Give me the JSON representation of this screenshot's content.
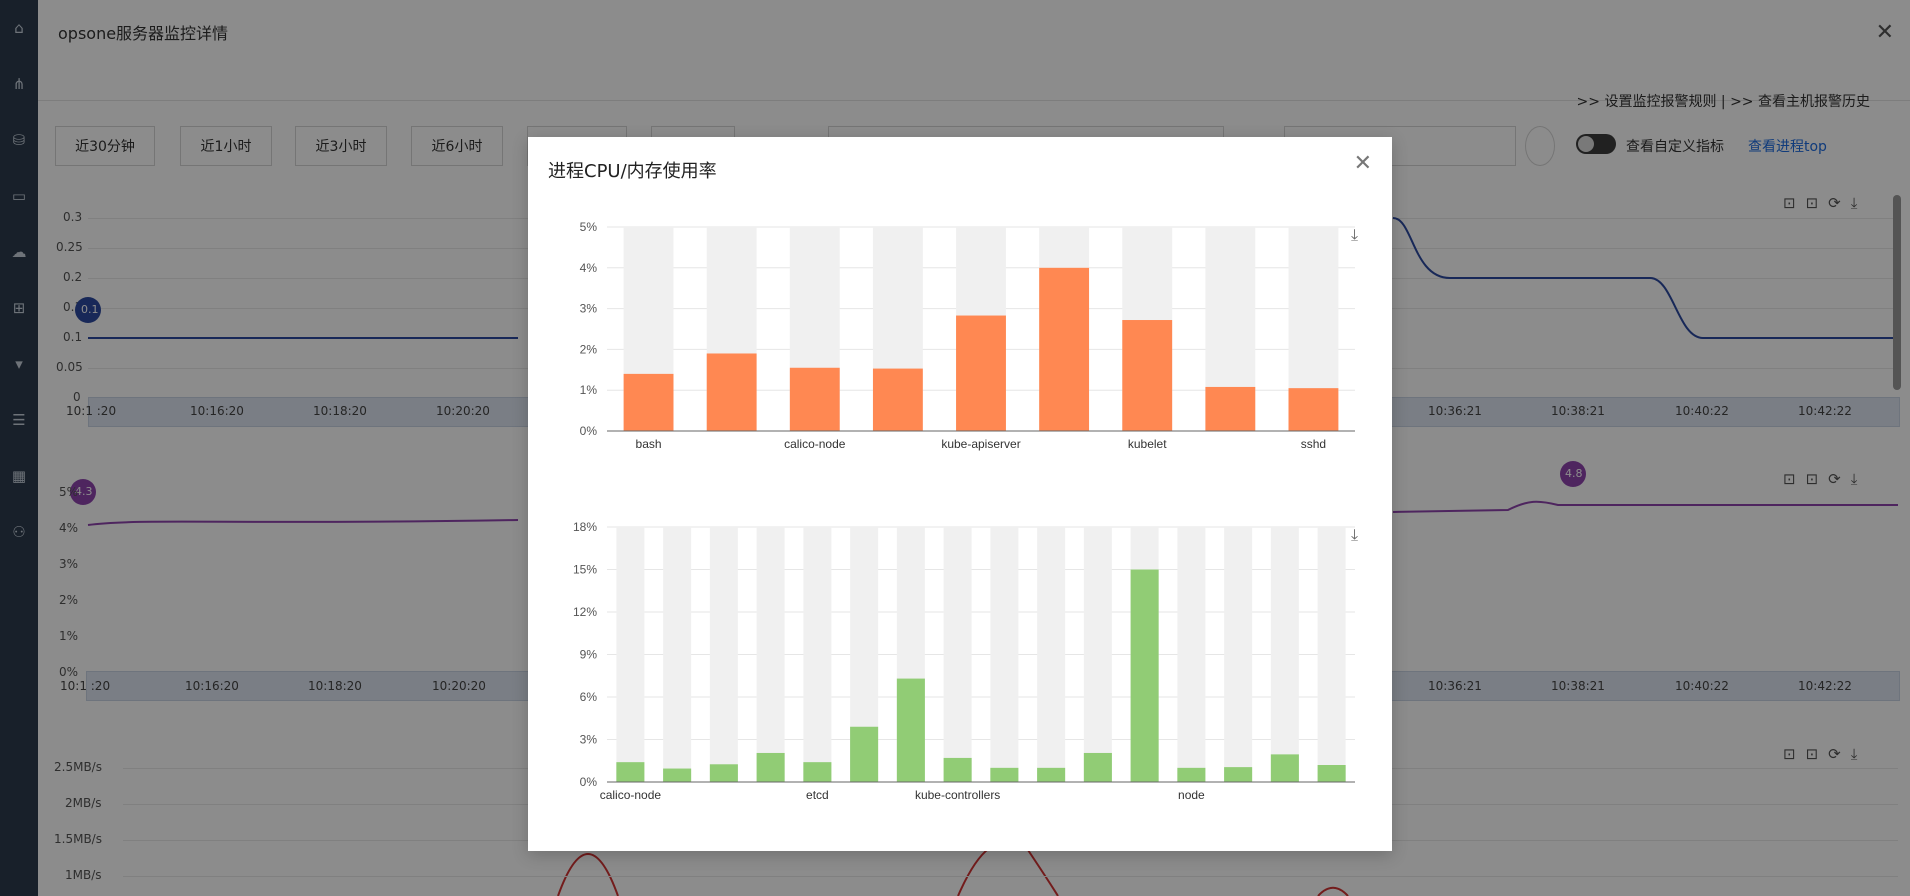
{
  "page": {
    "title": "opsone服务器监控详情",
    "close_icon": "close-icon",
    "links": ">> 设置监控报警规则 | >> 查看主机报警历史",
    "time_buttons": [
      "近30分钟",
      "近1小时",
      "近3小时",
      "近6小时"
    ],
    "toggle_label": "查看自定义指标",
    "top_link": "查看进程top",
    "chart1": {
      "yticks": [
        "0.3",
        "0.25",
        "0.2",
        "0.1",
        "0.1",
        "0.05",
        "0"
      ],
      "xticks_left": [
        "10:1 :20",
        "10:16:20",
        "10:18:20",
        "10:20:20"
      ],
      "xticks_right": [
        "10:36:21",
        "10:38:21",
        "10:40:22",
        "10:42:22"
      ],
      "marker": "0.1"
    },
    "chart2": {
      "yticks": [
        "5%",
        "4%",
        "3%",
        "2%",
        "1%",
        "0%"
      ],
      "xticks_left": [
        "10:1 :20",
        "10:16:20",
        "10:18:20",
        "10:20:20"
      ],
      "xticks_right": [
        "10:36:21",
        "10:38:21",
        "10:40:22",
        "10:42:22"
      ],
      "markers": [
        "4.3",
        "4.8"
      ]
    },
    "chart3": {
      "yticks": [
        "2.5MB/s",
        "2MB/s",
        "1.5MB/s",
        "1MB/s"
      ]
    }
  },
  "modal": {
    "title": "进程CPU/内存使用率",
    "close_icon": "close-icon",
    "download_icon": "download-icon"
  },
  "chart_data": [
    {
      "type": "bar",
      "categories": [
        "bash",
        "",
        "calico-node",
        "",
        "kube-apiserver",
        "",
        "kubelet",
        "",
        "sshd"
      ],
      "values": [
        1.4,
        1.9,
        1.55,
        1.53,
        2.83,
        4.0,
        2.72,
        1.08,
        1.05
      ],
      "ylim": [
        0,
        5
      ],
      "yticks": [
        "0%",
        "1%",
        "2%",
        "3%",
        "4%",
        "5%"
      ],
      "color": "#ff8852",
      "background_bar_color": "#f0f0f0"
    },
    {
      "type": "bar",
      "categories": [
        "calico-node",
        "",
        "",
        "",
        "etcd",
        "",
        "",
        "kube-controllers",
        "",
        "",
        "",
        "",
        "node",
        "",
        "",
        ""
      ],
      "values": [
        1.4,
        0.95,
        1.25,
        2.05,
        1.4,
        3.9,
        7.3,
        1.7,
        1.0,
        1.0,
        2.05,
        15.0,
        1.0,
        1.05,
        1.95,
        1.2
      ],
      "ylim": [
        0,
        18
      ],
      "yticks": [
        "0%",
        "3%",
        "6%",
        "9%",
        "12%",
        "15%",
        "18%"
      ],
      "color": "#91cc75",
      "background_bar_color": "#f0f0f0"
    }
  ]
}
